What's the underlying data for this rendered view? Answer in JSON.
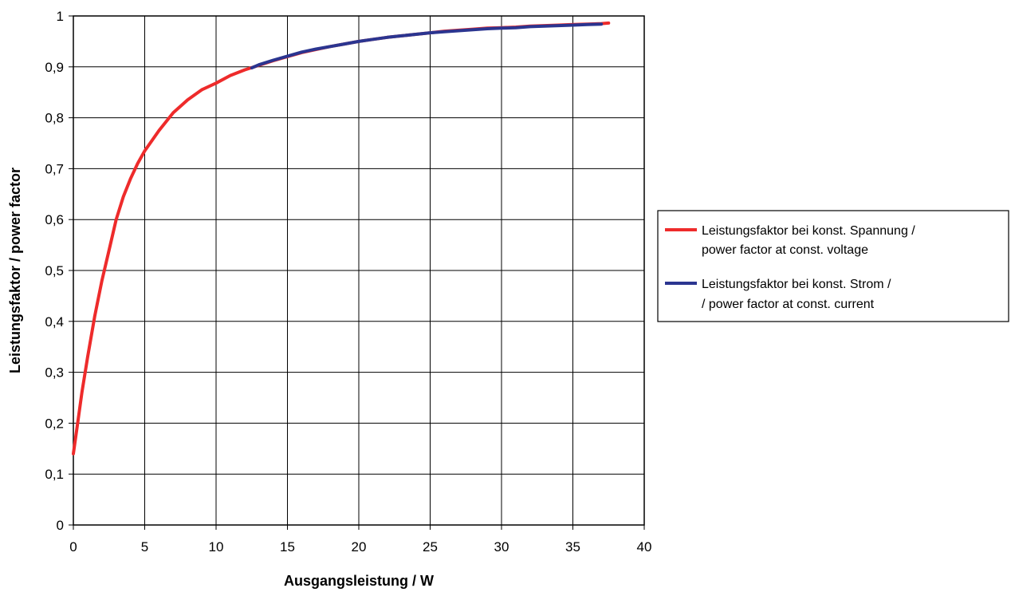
{
  "chart_data": {
    "type": "line",
    "xlabel": "Ausgangsleistung / W",
    "ylabel": "Leistungsfaktor / power factor",
    "xlim": [
      0,
      40
    ],
    "ylim": [
      0,
      1
    ],
    "x_ticks": [
      "0",
      "5",
      "10",
      "15",
      "20",
      "25",
      "30",
      "35",
      "40"
    ],
    "y_ticks": [
      "0",
      "0,1",
      "0,2",
      "0,3",
      "0,4",
      "0,5",
      "0,6",
      "0,7",
      "0,8",
      "0,9",
      "1"
    ],
    "grid": true,
    "legend_position": "right",
    "series": [
      {
        "name_lines": [
          "Leistungsfaktor bei konst. Spannung /",
          "power factor at const. voltage"
        ],
        "color": "#ee2b2b",
        "x": [
          0,
          0.3,
          0.6,
          1,
          1.5,
          2,
          2.5,
          3,
          3.5,
          4,
          4.5,
          5,
          6,
          7,
          8,
          9,
          10,
          11,
          12,
          13,
          14,
          15,
          16,
          17,
          18,
          19,
          20,
          21,
          22,
          23,
          24,
          25,
          26,
          27,
          28,
          29,
          30,
          31,
          32,
          33,
          34,
          35,
          36,
          37,
          37.5
        ],
        "y": [
          0.14,
          0.2,
          0.26,
          0.33,
          0.41,
          0.48,
          0.54,
          0.6,
          0.645,
          0.68,
          0.71,
          0.735,
          0.775,
          0.81,
          0.835,
          0.855,
          0.868,
          0.883,
          0.894,
          0.903,
          0.912,
          0.92,
          0.928,
          0.934,
          0.94,
          0.945,
          0.95,
          0.954,
          0.958,
          0.961,
          0.964,
          0.967,
          0.97,
          0.972,
          0.974,
          0.976,
          0.977,
          0.978,
          0.98,
          0.981,
          0.982,
          0.983,
          0.984,
          0.985,
          0.986
        ]
      },
      {
        "name_lines": [
          "Leistungsfaktor bei konst. Strom /",
          "/ power factor at const. current"
        ],
        "color": "#2b3590",
        "x": [
          12.5,
          13,
          14,
          15,
          16,
          17,
          18,
          19,
          20,
          21,
          22,
          23,
          24,
          25,
          26,
          27,
          28,
          29,
          30,
          31,
          32,
          33,
          34,
          35,
          36,
          37
        ],
        "y": [
          0.898,
          0.904,
          0.913,
          0.921,
          0.929,
          0.935,
          0.94,
          0.945,
          0.95,
          0.954,
          0.958,
          0.961,
          0.964,
          0.967,
          0.969,
          0.971,
          0.973,
          0.975,
          0.976,
          0.977,
          0.979,
          0.98,
          0.981,
          0.982,
          0.983,
          0.984
        ]
      }
    ]
  }
}
